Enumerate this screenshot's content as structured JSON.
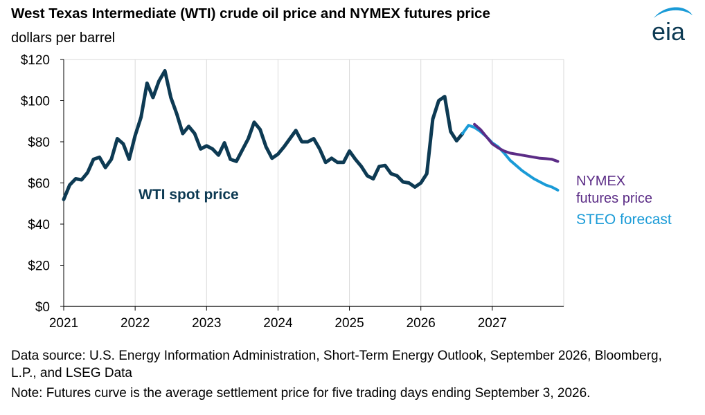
{
  "title": "West Texas Intermediate (WTI) crude oil price and NYMEX futures price",
  "subtitle": "dollars per barrel",
  "logo_text": "eia",
  "source_note": "Data source: U.S. Energy Information Administration, Short-Term Energy Outlook, September 2026, Bloomberg, L.P., and LSEG Data",
  "futures_note": "Note: Futures curve is the average settlement price for five trading days ending September 3, 2026.",
  "colors": {
    "wti": "#0d3a53",
    "steo": "#1a9bd7",
    "nymex": "#5b2c86",
    "grid": "#d9d9d9",
    "axis": "#000000"
  },
  "chart_data": {
    "type": "line",
    "title": "West Texas Intermediate (WTI) crude oil price and NYMEX futures price",
    "ylabel": "dollars per barrel",
    "xlabel": "",
    "ylim": [
      0,
      120
    ],
    "xlim": [
      "2021-01",
      "2027-12"
    ],
    "y_ticks": [
      0,
      20,
      40,
      60,
      80,
      100,
      120
    ],
    "y_tick_labels": [
      "$0",
      "$20",
      "$40",
      "$60",
      "$80",
      "$100",
      "$120"
    ],
    "x_ticks": [
      "2021-01",
      "2022-01",
      "2023-01",
      "2024-01",
      "2025-01",
      "2026-01",
      "2027-01"
    ],
    "x_tick_labels": [
      "2021",
      "2022",
      "2023",
      "2024",
      "2025",
      "2026",
      "2027"
    ],
    "grid": "vertical",
    "series": [
      {
        "name": "WTI spot price",
        "label_position": "inside-left",
        "x": [
          "2021-01",
          "2021-02",
          "2021-03",
          "2021-04",
          "2021-05",
          "2021-06",
          "2021-07",
          "2021-08",
          "2021-09",
          "2021-10",
          "2021-11",
          "2021-12",
          "2022-01",
          "2022-02",
          "2022-03",
          "2022-04",
          "2022-05",
          "2022-06",
          "2022-07",
          "2022-08",
          "2022-09",
          "2022-10",
          "2022-11",
          "2022-12",
          "2023-01",
          "2023-02",
          "2023-03",
          "2023-04",
          "2023-05",
          "2023-06",
          "2023-07",
          "2023-08",
          "2023-09",
          "2023-10",
          "2023-11",
          "2023-12",
          "2024-01",
          "2024-02",
          "2024-03",
          "2024-04",
          "2024-05",
          "2024-06",
          "2024-07",
          "2024-08",
          "2024-09",
          "2024-10",
          "2024-11",
          "2024-12",
          "2025-01",
          "2025-02",
          "2025-03",
          "2025-04",
          "2025-05",
          "2025-06",
          "2025-07",
          "2025-08",
          "2025-09",
          "2025-10",
          "2025-11",
          "2025-12",
          "2026-01",
          "2026-02",
          "2026-03",
          "2026-04",
          "2026-05",
          "2026-06",
          "2026-07",
          "2026-08"
        ],
        "values": [
          52,
          59,
          62,
          61.5,
          65,
          71.5,
          72.5,
          67.5,
          71.5,
          81.5,
          79,
          71.5,
          83,
          92,
          108.5,
          101.5,
          109.5,
          114.5,
          101.5,
          93.5,
          84,
          87.5,
          84,
          76.5,
          78,
          76.5,
          73.5,
          79.5,
          71.5,
          70.5,
          76,
          81.5,
          89.5,
          86,
          77.5,
          72,
          74,
          77.5,
          81.5,
          85.5,
          80,
          80,
          81.5,
          76.5,
          70,
          72,
          70,
          70,
          75.5,
          71.5,
          68,
          63.5,
          62,
          68,
          68.5,
          64.5,
          63.5,
          60.5,
          60,
          58,
          60,
          64.5,
          91,
          100,
          102,
          85,
          80.5,
          84
        ]
      },
      {
        "name": "STEO forecast",
        "label_position": "right",
        "x": [
          "2026-08",
          "2026-09",
          "2026-10",
          "2026-11",
          "2026-12",
          "2027-01",
          "2027-02",
          "2027-03",
          "2027-04",
          "2027-05",
          "2027-06",
          "2027-07",
          "2027-08",
          "2027-09",
          "2027-10",
          "2027-11",
          "2027-12"
        ],
        "values": [
          84,
          88,
          87,
          85,
          82.5,
          79.5,
          77.5,
          74.5,
          71,
          68.5,
          66,
          64,
          62,
          60.5,
          59,
          58,
          56.5
        ]
      },
      {
        "name": "NYMEX futures price",
        "label_lines": [
          "NYMEX",
          "futures price"
        ],
        "label_position": "right",
        "x": [
          "2026-10",
          "2026-11",
          "2026-12",
          "2027-01",
          "2027-02",
          "2027-03",
          "2027-04",
          "2027-05",
          "2027-06",
          "2027-07",
          "2027-08",
          "2027-09",
          "2027-10",
          "2027-11",
          "2027-12"
        ],
        "values": [
          88.5,
          86,
          82.5,
          79,
          77,
          75.5,
          74.5,
          74,
          73.5,
          73,
          72.5,
          72,
          71.8,
          71.5,
          70.5
        ]
      }
    ]
  }
}
